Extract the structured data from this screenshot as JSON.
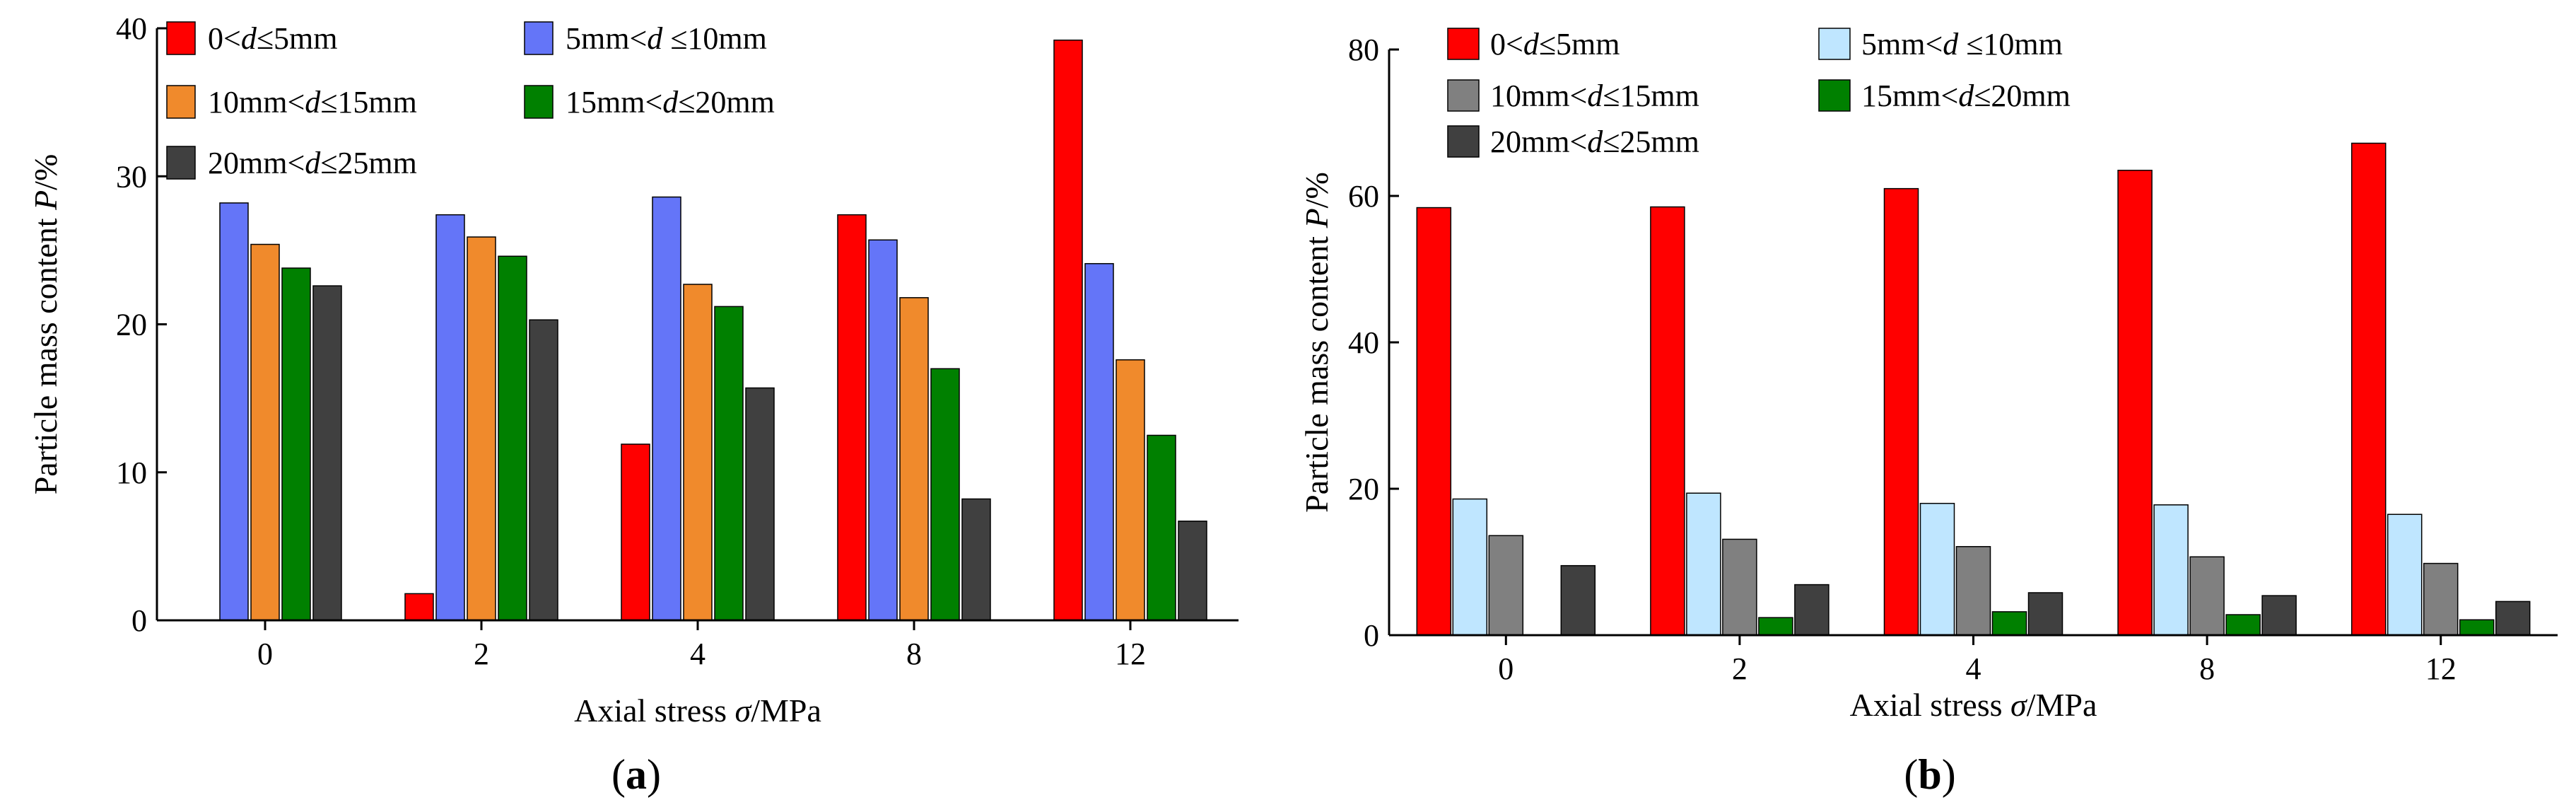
{
  "chart_data": [
    {
      "type": "bar",
      "panel_label": "a",
      "categories": [
        "0",
        "2",
        "4",
        "8",
        "12"
      ],
      "xlabel": {
        "prefix": "Axial stress ",
        "italic": "σ",
        "suffix": "/MPa"
      },
      "ylabel": {
        "prefix": "Particle mass content ",
        "italic": "P",
        "suffix": "/%"
      },
      "ylim": [
        0,
        40
      ],
      "yticks": [
        "0",
        "10",
        "20",
        "30",
        "40"
      ],
      "legend_position": "top-left",
      "series": [
        {
          "name": "0<d≤5mm",
          "color": "#ff0000",
          "legend_parts": [
            [
              "0<",
              false
            ],
            [
              "d",
              true
            ],
            [
              "≤5mm",
              false
            ]
          ],
          "values": [
            0,
            1.8,
            11.9,
            27.4,
            39.2
          ]
        },
        {
          "name": "5mm<d ≤10mm",
          "color": "#6475f8",
          "legend_parts": [
            [
              "5mm<",
              false
            ],
            [
              "d",
              true
            ],
            [
              " ≤10mm",
              false
            ]
          ],
          "values": [
            28.2,
            27.4,
            28.6,
            25.7,
            24.1
          ]
        },
        {
          "name": "10mm<d≤15mm",
          "color": "#f08a2c",
          "legend_parts": [
            [
              "10mm<",
              false
            ],
            [
              "d",
              true
            ],
            [
              "≤15mm",
              false
            ]
          ],
          "values": [
            25.4,
            25.9,
            22.7,
            21.8,
            17.6
          ]
        },
        {
          "name": "15mm<d≤20mm",
          "color": "#008000",
          "legend_parts": [
            [
              "15mm<",
              false
            ],
            [
              "d",
              true
            ],
            [
              "≤20mm",
              false
            ]
          ],
          "values": [
            23.8,
            24.6,
            21.2,
            17.0,
            12.5
          ]
        },
        {
          "name": "20mm<d≤25mm",
          "color": "#404040",
          "legend_parts": [
            [
              "20mm<",
              false
            ],
            [
              "d",
              true
            ],
            [
              "≤25mm",
              false
            ]
          ],
          "values": [
            22.6,
            20.3,
            15.7,
            8.2,
            6.7
          ]
        }
      ]
    },
    {
      "type": "bar",
      "panel_label": "b",
      "categories": [
        "0",
        "2",
        "4",
        "8",
        "12"
      ],
      "xlabel": {
        "prefix": "Axial stress ",
        "italic": "σ",
        "suffix": "/MPa"
      },
      "ylabel": {
        "prefix": "Particle mass content ",
        "italic": "P",
        "suffix": "/%"
      },
      "ylim": [
        0,
        80
      ],
      "yticks": [
        "0",
        "20",
        "40",
        "60",
        "80"
      ],
      "legend_position": "top-left",
      "series": [
        {
          "name": "0<d≤5mm",
          "color": "#ff0000",
          "legend_parts": [
            [
              "0<",
              false
            ],
            [
              "d",
              true
            ],
            [
              "≤5mm",
              false
            ]
          ],
          "values": [
            58.4,
            58.5,
            61.0,
            63.5,
            67.2
          ]
        },
        {
          "name": "5mm<d ≤10mm",
          "color": "#bfe6ff",
          "legend_parts": [
            [
              "5mm<",
              false
            ],
            [
              "d",
              true
            ],
            [
              " ≤10mm",
              false
            ]
          ],
          "values": [
            18.6,
            19.4,
            18.0,
            17.8,
            16.5
          ]
        },
        {
          "name": "10mm<d≤15mm",
          "color": "#808080",
          "legend_parts": [
            [
              "10mm<",
              false
            ],
            [
              "d",
              true
            ],
            [
              "≤15mm",
              false
            ]
          ],
          "values": [
            13.6,
            13.1,
            12.1,
            10.7,
            9.8
          ]
        },
        {
          "name": "15mm<d≤20mm",
          "color": "#008000",
          "legend_parts": [
            [
              "15mm<",
              false
            ],
            [
              "d",
              true
            ],
            [
              "≤20mm",
              false
            ]
          ],
          "values": [
            0,
            2.4,
            3.2,
            2.8,
            2.1
          ]
        },
        {
          "name": "20mm<d≤25mm",
          "color": "#404040",
          "legend_parts": [
            [
              "20mm<",
              false
            ],
            [
              "d",
              true
            ],
            [
              "≤25mm",
              false
            ]
          ],
          "values": [
            9.5,
            6.9,
            5.8,
            5.4,
            4.6
          ]
        }
      ]
    }
  ]
}
